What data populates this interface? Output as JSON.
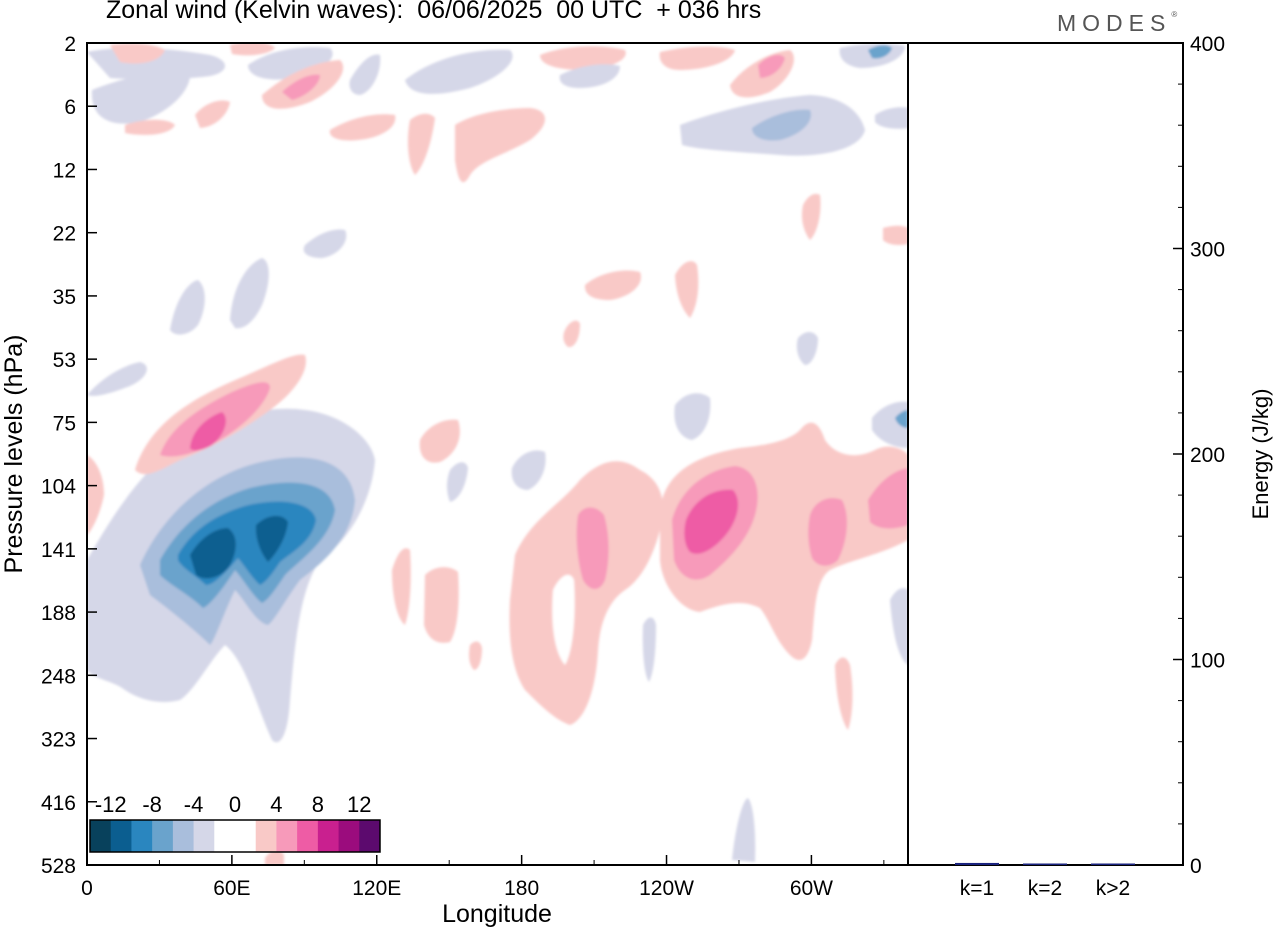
{
  "title": "Zonal wind (Kelvin waves):  06/06/2025  00 UTC  + 036 hrs",
  "brand": "MODES",
  "brand_mark": "®",
  "chart_data": [
    {
      "type": "heatmap",
      "xlabel": "Longitude",
      "ylabel": "Pressure levels (hPa)",
      "x_tick_labels": [
        "0",
        "60E",
        "120E",
        "180",
        "120W",
        "60W"
      ],
      "y_tick_labels": [
        "2",
        "6",
        "12",
        "22",
        "35",
        "53",
        "75",
        "104",
        "141",
        "188",
        "248",
        "323",
        "416",
        "528"
      ],
      "colorbar": {
        "labels": [
          "-12",
          "-8",
          "-4",
          "0",
          "4",
          "8",
          "12"
        ],
        "colors": [
          "#08415c",
          "#0b5e90",
          "#2a86bf",
          "#6aa3cc",
          "#a9bedc",
          "#d5d7e8",
          "#ffffff",
          "#ffffff",
          "#f9c9c7",
          "#f79aba",
          "#ee5ca5",
          "#c9208f",
          "#9b0c7d",
          "#5c0a6e"
        ]
      },
      "features": [
        {
          "sign": "negative",
          "peak": -14,
          "lon_center": 55,
          "level": "141"
        },
        {
          "sign": "positive",
          "peak": 9,
          "lon_center": 45,
          "level": "75"
        },
        {
          "sign": "positive",
          "peak": 9,
          "lon_center": 230,
          "level": "141"
        },
        {
          "sign": "positive",
          "peak": 5,
          "lon_center": 180,
          "level": "188"
        }
      ]
    },
    {
      "type": "bar",
      "ylabel": "Energy (J/kg)",
      "ylim": [
        0,
        400
      ],
      "y_tick_labels": [
        "0",
        "100",
        "200",
        "300",
        "400"
      ],
      "categories": [
        "k=1",
        "k=2",
        "k>2"
      ],
      "values": [
        1,
        0.3,
        0.3
      ],
      "bar_color": "#1a237e"
    }
  ]
}
